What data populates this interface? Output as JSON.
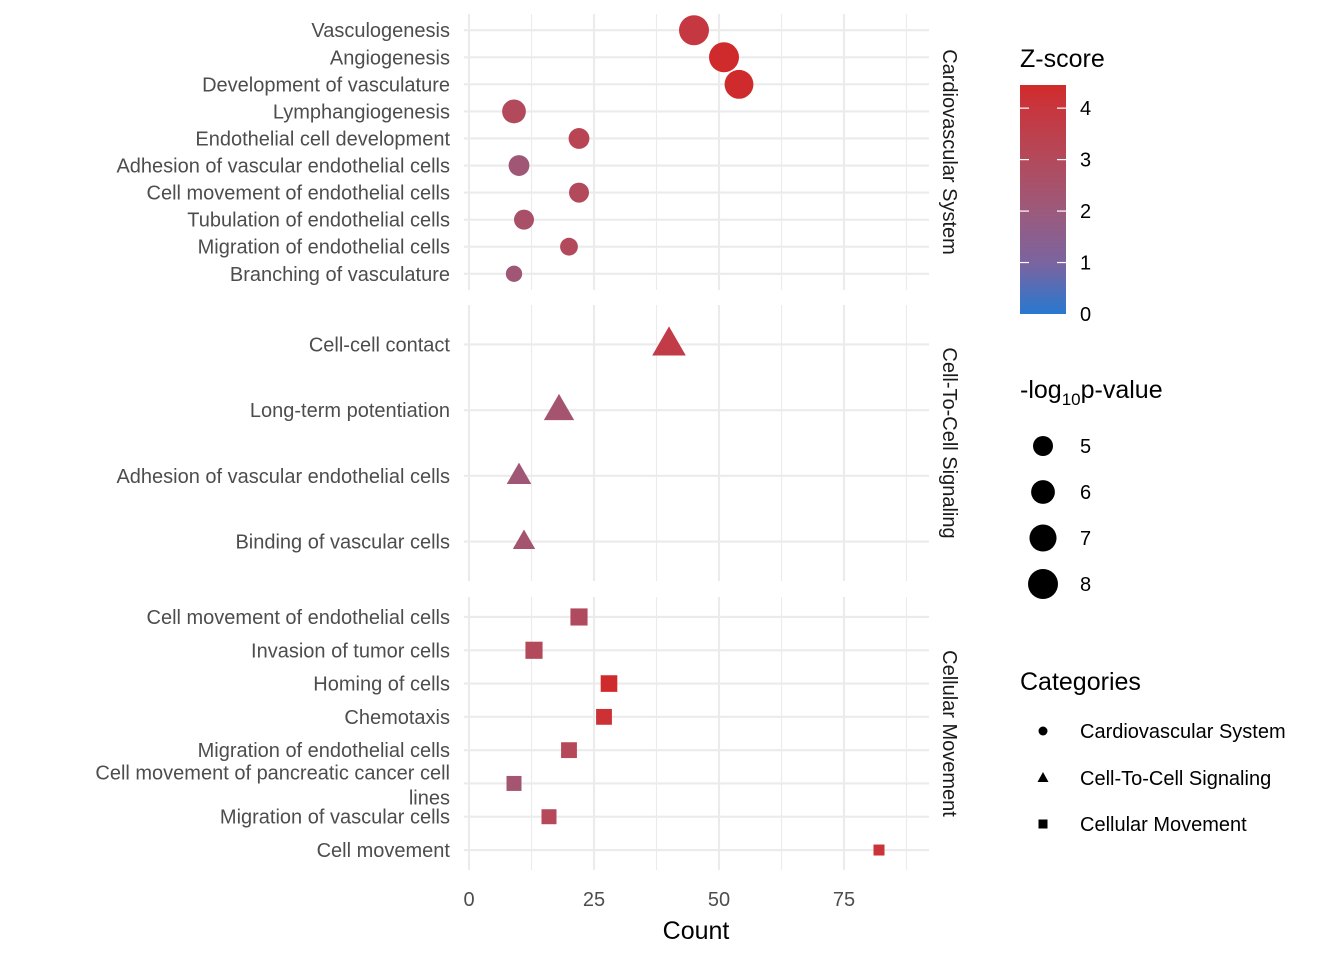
{
  "chart_data": {
    "type": "scatter",
    "xlabel": "Count",
    "ylabel": "",
    "xlim": [
      0,
      92
    ],
    "x_ticks": [
      0,
      25,
      50,
      75
    ],
    "x_tick_labels": [
      "0",
      "25",
      "50",
      "75"
    ],
    "grid": true,
    "facets": [
      {
        "name": "Cardiovascular System",
        "shape": "circle",
        "points": [
          {
            "label": "Vasculogenesis",
            "count": 45,
            "zscore": 3.9,
            "neglog10p": 8.0
          },
          {
            "label": "Angiogenesis",
            "count": 51,
            "zscore": 4.4,
            "neglog10p": 8.0
          },
          {
            "label": "Development of vasculature",
            "count": 54,
            "zscore": 4.4,
            "neglog10p": 7.6
          },
          {
            "label": "Lymphangiogenesis",
            "count": 9,
            "zscore": 3.0,
            "neglog10p": 6.0
          },
          {
            "label": "Endothelial cell development",
            "count": 22,
            "zscore": 3.3,
            "neglog10p": 5.2
          },
          {
            "label": "Adhesion of vascular endothelial cells",
            "count": 10,
            "zscore": 2.2,
            "neglog10p": 5.2
          },
          {
            "label": "Cell movement of endothelial cells",
            "count": 22,
            "zscore": 3.0,
            "neglog10p": 5.0
          },
          {
            "label": "Tubulation of endothelial cells",
            "count": 11,
            "zscore": 2.6,
            "neglog10p": 5.0
          },
          {
            "label": "Migration of endothelial cells",
            "count": 20,
            "zscore": 3.0,
            "neglog10p": 4.5
          },
          {
            "label": "Branching of vasculature",
            "count": 9,
            "zscore": 2.2,
            "neglog10p": 4.2
          }
        ]
      },
      {
        "name": "Cell-To-Cell Signaling",
        "shape": "triangle",
        "points": [
          {
            "label": "Cell-cell contact",
            "count": 40,
            "zscore": 3.7,
            "neglog10p": 8.0
          },
          {
            "label": "Long-term potentiation",
            "count": 18,
            "zscore": 2.4,
            "neglog10p": 7.0
          },
          {
            "label": "Adhesion of vascular endothelial cells",
            "count": 10,
            "zscore": 2.2,
            "neglog10p": 5.5
          },
          {
            "label": "Binding of vascular cells",
            "count": 11,
            "zscore": 2.4,
            "neglog10p": 5.0
          }
        ]
      },
      {
        "name": "Cellular Movement",
        "shape": "square",
        "points": [
          {
            "label": "Cell movement of endothelial cells",
            "count": 22,
            "zscore": 2.9,
            "neglog10p": 6.0
          },
          {
            "label": "Invasion of tumor cells",
            "count": 13,
            "zscore": 3.0,
            "neglog10p": 6.0
          },
          {
            "label": "Homing of cells",
            "count": 28,
            "zscore": 4.4,
            "neglog10p": 5.8
          },
          {
            "label": "Chemotaxis",
            "count": 27,
            "zscore": 4.2,
            "neglog10p": 5.5
          },
          {
            "label": "Migration of endothelial cells",
            "count": 20,
            "zscore": 3.1,
            "neglog10p": 5.5
          },
          {
            "label": "Cell movement of pancreatic cancer cell lines",
            "label_lines": [
              "Cell movement of pancreatic cancer cell",
              "lines"
            ],
            "count": 9,
            "zscore": 2.3,
            "neglog10p": 5.2
          },
          {
            "label": "Migration of vascular cells",
            "count": 16,
            "zscore": 3.1,
            "neglog10p": 5.2
          },
          {
            "label": "Cell movement",
            "count": 82,
            "zscore": 4.1,
            "neglog10p": 4.0
          }
        ]
      }
    ],
    "legends": {
      "color": {
        "title": "Z-score",
        "ticks": [
          0,
          1,
          2,
          3,
          4
        ],
        "tick_labels": [
          "0",
          "1",
          "2",
          "3",
          "4"
        ],
        "range": [
          0,
          4.45
        ],
        "low_color": "#2878D0",
        "high_color": "#D12A2A"
      },
      "size": {
        "title_prefix": "-log",
        "title_sub": "10",
        "title_suffix": "p-value",
        "values": [
          5,
          6,
          7,
          8
        ],
        "labels": [
          "5",
          "6",
          "7",
          "8"
        ]
      },
      "shape": {
        "title": "Categories",
        "items": [
          {
            "label": "Cardiovascular System",
            "shape": "circle"
          },
          {
            "label": "Cell-To-Cell Signaling",
            "shape": "triangle"
          },
          {
            "label": "Cellular Movement",
            "shape": "square"
          }
        ]
      }
    }
  }
}
